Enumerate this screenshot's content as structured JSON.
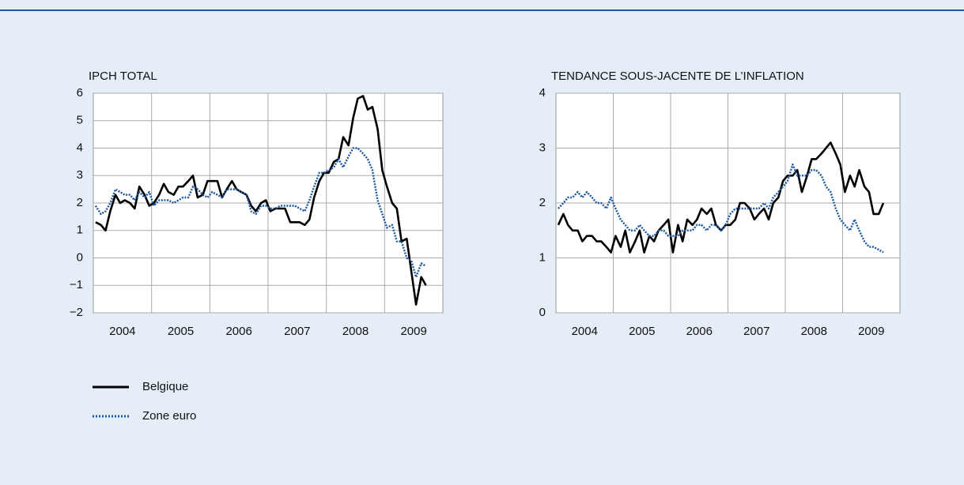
{
  "chart_data": [
    {
      "type": "line",
      "title": "IPCH TOTAL",
      "x": [
        2004.04,
        2004.13,
        2004.21,
        2004.29,
        2004.38,
        2004.46,
        2004.54,
        2004.63,
        2004.71,
        2004.79,
        2004.88,
        2004.96,
        2005.04,
        2005.13,
        2005.21,
        2005.29,
        2005.38,
        2005.46,
        2005.54,
        2005.63,
        2005.71,
        2005.79,
        2005.88,
        2005.96,
        2006.04,
        2006.13,
        2006.21,
        2006.29,
        2006.38,
        2006.46,
        2006.54,
        2006.63,
        2006.71,
        2006.79,
        2006.88,
        2006.96,
        2007.04,
        2007.13,
        2007.21,
        2007.29,
        2007.38,
        2007.46,
        2007.54,
        2007.63,
        2007.71,
        2007.79,
        2007.88,
        2007.96,
        2008.04,
        2008.13,
        2008.21,
        2008.29,
        2008.38,
        2008.46,
        2008.54,
        2008.63,
        2008.71,
        2008.79,
        2008.88,
        2008.96,
        2009.04,
        2009.13,
        2009.21,
        2009.29,
        2009.38,
        2009.46,
        2009.54,
        2009.63,
        2009.71
      ],
      "series": [
        {
          "name": "Belgique",
          "color": "#000000",
          "style": "solid",
          "values": [
            1.3,
            1.2,
            1.0,
            1.7,
            2.3,
            2.0,
            2.1,
            2.0,
            1.8,
            2.6,
            2.3,
            1.9,
            2.0,
            2.3,
            2.7,
            2.4,
            2.3,
            2.6,
            2.6,
            2.8,
            3.0,
            2.2,
            2.3,
            2.8,
            2.8,
            2.8,
            2.2,
            2.5,
            2.8,
            2.5,
            2.4,
            2.3,
            1.9,
            1.7,
            2.0,
            2.1,
            1.7,
            1.8,
            1.8,
            1.8,
            1.3,
            1.3,
            1.3,
            1.2,
            1.4,
            2.2,
            2.8,
            3.1,
            3.1,
            3.5,
            3.6,
            4.4,
            4.1,
            5.1,
            5.8,
            5.9,
            5.4,
            5.5,
            4.7,
            3.2,
            2.6,
            2.0,
            1.8,
            0.6,
            0.7,
            -0.5,
            -1.7,
            -0.7,
            -1.0
          ]
        },
        {
          "name": "Zone euro",
          "color": "#1f5aa0",
          "style": "dotted",
          "values": [
            1.9,
            1.6,
            1.7,
            2.0,
            2.5,
            2.4,
            2.3,
            2.3,
            2.1,
            2.4,
            2.2,
            2.4,
            1.9,
            2.1,
            2.1,
            2.1,
            2.0,
            2.1,
            2.2,
            2.2,
            2.6,
            2.5,
            2.3,
            2.2,
            2.4,
            2.3,
            2.2,
            2.5,
            2.5,
            2.5,
            2.4,
            2.3,
            1.7,
            1.6,
            1.9,
            1.9,
            1.8,
            1.8,
            1.9,
            1.9,
            1.9,
            1.9,
            1.8,
            1.7,
            2.1,
            2.6,
            3.1,
            3.1,
            3.2,
            3.3,
            3.6,
            3.3,
            3.7,
            4.0,
            4.0,
            3.8,
            3.6,
            3.2,
            2.1,
            1.6,
            1.1,
            1.2,
            0.6,
            0.6,
            0.0,
            -0.1,
            -0.7,
            -0.2,
            -0.3
          ]
        }
      ],
      "xlim": [
        2004,
        2010
      ],
      "xticks": [
        {
          "value": 2004.5,
          "label": "2004"
        },
        {
          "value": 2005.5,
          "label": "2005"
        },
        {
          "value": 2006.5,
          "label": "2006"
        },
        {
          "value": 2007.5,
          "label": "2007"
        },
        {
          "value": 2008.5,
          "label": "2008"
        },
        {
          "value": 2009.5,
          "label": "2009"
        }
      ],
      "xgrid": [
        2005,
        2006,
        2007,
        2008,
        2009
      ],
      "ylim": [
        -2,
        6
      ],
      "yticks": [
        {
          "value": -2,
          "label": "−2"
        },
        {
          "value": -1,
          "label": "−1"
        },
        0,
        1,
        2,
        3,
        4,
        5,
        6
      ],
      "grid": true
    },
    {
      "type": "line",
      "title": "TENDANCE SOUS-JACENTE DE L’INFLATION",
      "x": [
        2004.04,
        2004.13,
        2004.21,
        2004.29,
        2004.38,
        2004.46,
        2004.54,
        2004.63,
        2004.71,
        2004.79,
        2004.88,
        2004.96,
        2005.04,
        2005.13,
        2005.21,
        2005.29,
        2005.38,
        2005.46,
        2005.54,
        2005.63,
        2005.71,
        2005.79,
        2005.88,
        2005.96,
        2006.04,
        2006.13,
        2006.21,
        2006.29,
        2006.38,
        2006.46,
        2006.54,
        2006.63,
        2006.71,
        2006.79,
        2006.88,
        2006.96,
        2007.04,
        2007.13,
        2007.21,
        2007.29,
        2007.38,
        2007.46,
        2007.54,
        2007.63,
        2007.71,
        2007.79,
        2007.88,
        2007.96,
        2008.04,
        2008.13,
        2008.21,
        2008.29,
        2008.38,
        2008.46,
        2008.54,
        2008.63,
        2008.71,
        2008.79,
        2008.88,
        2008.96,
        2009.04,
        2009.13,
        2009.21,
        2009.29,
        2009.38,
        2009.46,
        2009.54,
        2009.63,
        2009.71
      ],
      "series": [
        {
          "name": "Belgique",
          "color": "#000000",
          "style": "solid",
          "values": [
            1.6,
            1.8,
            1.6,
            1.5,
            1.5,
            1.3,
            1.4,
            1.4,
            1.3,
            1.3,
            1.2,
            1.1,
            1.4,
            1.2,
            1.5,
            1.1,
            1.3,
            1.5,
            1.1,
            1.4,
            1.3,
            1.5,
            1.6,
            1.7,
            1.1,
            1.6,
            1.3,
            1.7,
            1.6,
            1.7,
            1.9,
            1.8,
            1.9,
            1.6,
            1.5,
            1.6,
            1.6,
            1.7,
            2.0,
            2.0,
            1.9,
            1.7,
            1.8,
            1.9,
            1.7,
            2.0,
            2.1,
            2.4,
            2.5,
            2.5,
            2.6,
            2.2,
            2.5,
            2.8,
            2.8,
            2.9,
            3.0,
            3.1,
            2.9,
            2.7,
            2.2,
            2.5,
            2.3,
            2.6,
            2.3,
            2.2,
            1.8,
            1.8,
            2.0
          ]
        },
        {
          "name": "Zone euro",
          "color": "#1f5aa0",
          "style": "dotted",
          "values": [
            1.9,
            2.0,
            2.1,
            2.1,
            2.2,
            2.1,
            2.2,
            2.1,
            2.0,
            2.0,
            1.9,
            2.1,
            1.9,
            1.7,
            1.6,
            1.5,
            1.5,
            1.6,
            1.5,
            1.4,
            1.4,
            1.5,
            1.5,
            1.4,
            1.4,
            1.4,
            1.5,
            1.5,
            1.5,
            1.6,
            1.6,
            1.5,
            1.6,
            1.6,
            1.5,
            1.6,
            1.8,
            1.9,
            1.9,
            1.9,
            1.9,
            1.9,
            1.9,
            2.0,
            1.9,
            2.1,
            2.2,
            2.3,
            2.4,
            2.7,
            2.5,
            2.5,
            2.5,
            2.6,
            2.6,
            2.5,
            2.3,
            2.2,
            1.9,
            1.7,
            1.6,
            1.5,
            1.7,
            1.5,
            1.3,
            1.2,
            1.2,
            1.15,
            1.1
          ]
        }
      ],
      "xlim": [
        2004,
        2010
      ],
      "xticks": [
        {
          "value": 2004.5,
          "label": "2004"
        },
        {
          "value": 2005.5,
          "label": "2005"
        },
        {
          "value": 2006.5,
          "label": "2006"
        },
        {
          "value": 2007.5,
          "label": "2007"
        },
        {
          "value": 2008.5,
          "label": "2008"
        },
        {
          "value": 2009.5,
          "label": "2009"
        }
      ],
      "xgrid": [
        2005,
        2006,
        2007,
        2008,
        2009
      ],
      "ylim": [
        0,
        4
      ],
      "yticks": [
        0,
        1,
        2,
        3,
        4
      ],
      "grid": true
    }
  ]
}
